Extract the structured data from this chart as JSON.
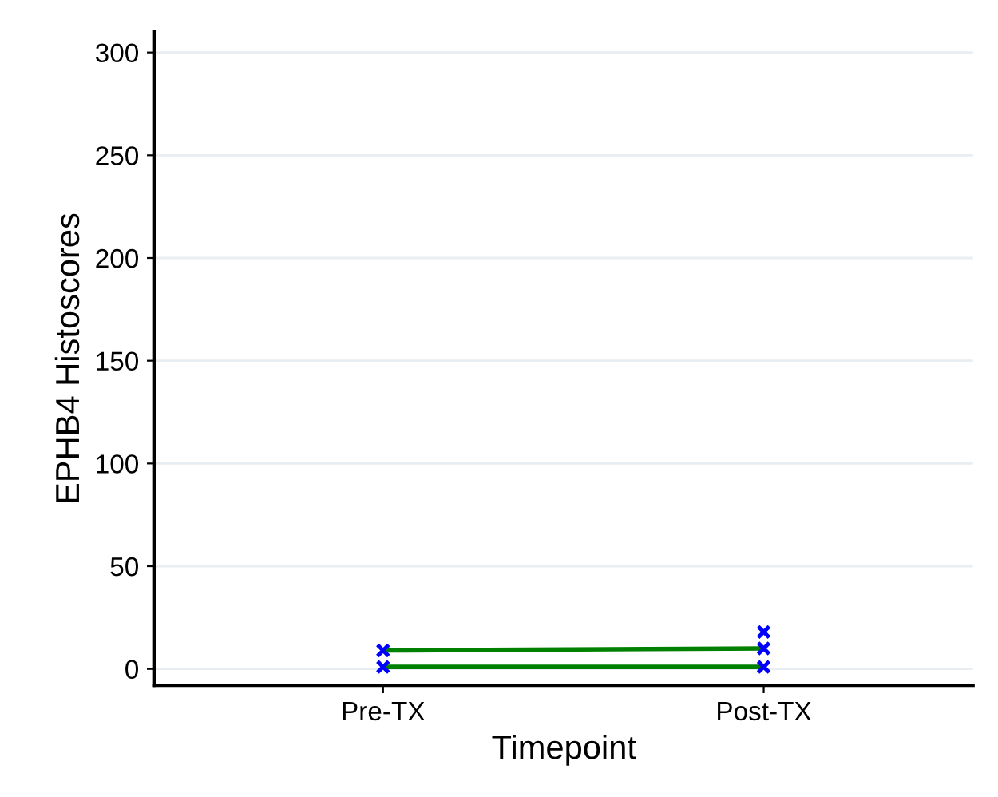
{
  "chart_data": {
    "type": "line",
    "xlabel": "Timepoint",
    "ylabel": "EPHB4 Histoscores",
    "categories": [
      "Pre-TX",
      "Post-TX"
    ],
    "series": [
      {
        "color": "#008000",
        "colors": [
          "#0000ff",
          "#0000ff"
        ],
        "values": [
          9,
          10
        ]
      },
      {
        "color": "#008000",
        "colors": [
          "#0000ff",
          "#0000ff"
        ],
        "values": [
          1,
          1
        ]
      },
      {
        "color": "#008000",
        "colors": [
          "#0000ff",
          "#0000ff"
        ],
        "values": [
          null,
          18
        ]
      }
    ],
    "ylim": [
      -8,
      310
    ],
    "yticks": [
      0,
      50,
      100,
      150,
      200,
      250,
      300
    ],
    "grid": "y",
    "legend": false,
    "marker": "cross",
    "line_style": "solid"
  }
}
